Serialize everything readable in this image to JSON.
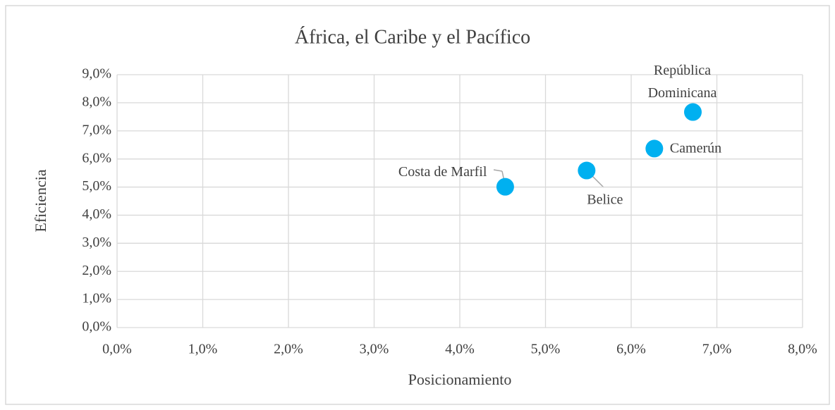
{
  "chart_data": {
    "type": "scatter",
    "title": "África, el Caribe y el Pacífico",
    "x_label": "Posicionamiento",
    "y_label": "Eficiencia",
    "series": [
      {
        "color": "#00b0f0",
        "labels": [
          "Costa de Marfil",
          "Belice",
          "Camerún",
          "República Dominicana"
        ],
        "x": [
          4.53,
          5.48,
          6.27,
          6.72
        ],
        "values": [
          5.01,
          5.59,
          6.37,
          7.67
        ]
      }
    ],
    "xlim": [
      0,
      8
    ],
    "xticks": [
      {
        "value": 0,
        "label": "0,0%"
      },
      {
        "value": 1,
        "label": "1,0%"
      },
      {
        "value": 2,
        "label": "2,0%"
      },
      {
        "value": 3,
        "label": "3,0%"
      },
      {
        "value": 4,
        "label": "4,0%"
      },
      {
        "value": 5,
        "label": "5,0%"
      },
      {
        "value": 6,
        "label": "6,0%"
      },
      {
        "value": 7,
        "label": "7,0%"
      },
      {
        "value": 8,
        "label": "8,0%"
      }
    ],
    "ylim": [
      0,
      9
    ],
    "yticks": [
      {
        "value": 0,
        "label": "0,0%"
      },
      {
        "value": 1,
        "label": "1,0%"
      },
      {
        "value": 2,
        "label": "2,0%"
      },
      {
        "value": 3,
        "label": "3,0%"
      },
      {
        "value": 4,
        "label": "4,0%"
      },
      {
        "value": 5,
        "label": "5,0%"
      },
      {
        "value": 6,
        "label": "6,0%"
      },
      {
        "value": 7,
        "label": "7,0%"
      },
      {
        "value": 8,
        "label": "8,0%"
      },
      {
        "value": 9,
        "label": "9,0%"
      }
    ],
    "grid": true
  }
}
